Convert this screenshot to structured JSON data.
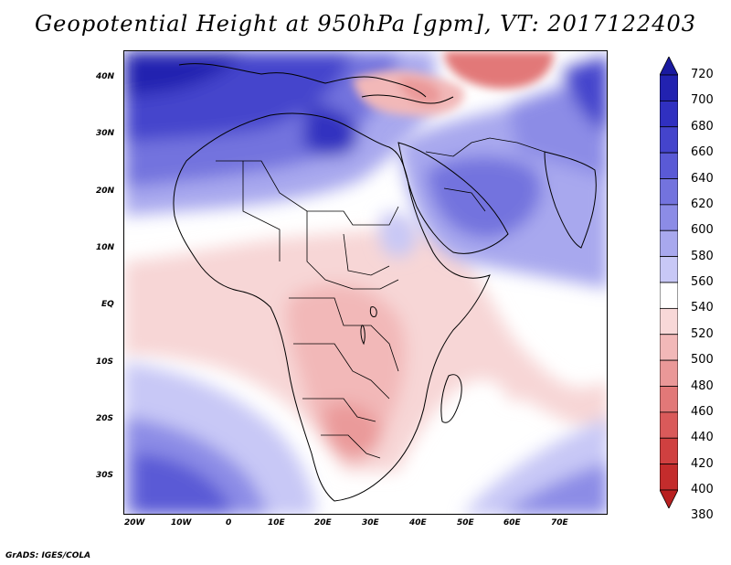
{
  "title": "Geopotential Height at 950hPa [gpm], VT: 2017122403",
  "footer": "GrADS: IGES/COLA",
  "axes": {
    "lat_labels": [
      "40N",
      "30N",
      "20N",
      "10N",
      "EQ",
      "10S",
      "20S",
      "30S"
    ],
    "lon_labels": [
      "20W",
      "10W",
      "0",
      "10E",
      "20E",
      "30E",
      "40E",
      "50E",
      "60E",
      "70E"
    ]
  },
  "colorbar": {
    "levels": [
      "720",
      "700",
      "680",
      "660",
      "640",
      "620",
      "600",
      "580",
      "560",
      "540",
      "520",
      "500",
      "480",
      "460",
      "440",
      "420",
      "400",
      "380"
    ],
    "colors": [
      "#1a1aa0",
      "#2222b0",
      "#3030c0",
      "#4444cc",
      "#5a5ad6",
      "#7373de",
      "#8c8ce6",
      "#a8a8ee",
      "#c8c8f6",
      "#ffffff",
      "#f8d8d8",
      "#f2b8b8",
      "#ea9898",
      "#e27878",
      "#da5a5a",
      "#d04040",
      "#c42c2c",
      "#b82020"
    ]
  }
}
